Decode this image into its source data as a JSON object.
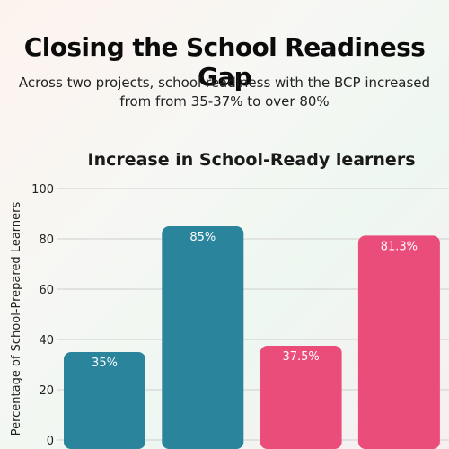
{
  "title": "Closing the School Readiness Gap",
  "subtitle_line1": "Across two projects, school readiness with the BCP increased",
  "subtitle_line2": "from from 35-37% to over 80%",
  "chart_data": {
    "type": "bar",
    "title": "Increase in School-Ready learners",
    "xlabel": "",
    "ylabel": "Percentage of School-Prepared Learners",
    "ylim": [
      0,
      100
    ],
    "yticks": [
      0,
      20,
      40,
      60,
      80,
      100
    ],
    "grid": true,
    "categories": [
      "",
      "",
      "",
      ""
    ],
    "values": [
      35,
      85,
      37.5,
      81.3
    ],
    "data_labels": [
      "35%",
      "85%",
      "37.5%",
      "81.3%"
    ],
    "colors": [
      "#2a849c",
      "#2a849c",
      "#ea4d7a",
      "#ea4d7a"
    ]
  }
}
